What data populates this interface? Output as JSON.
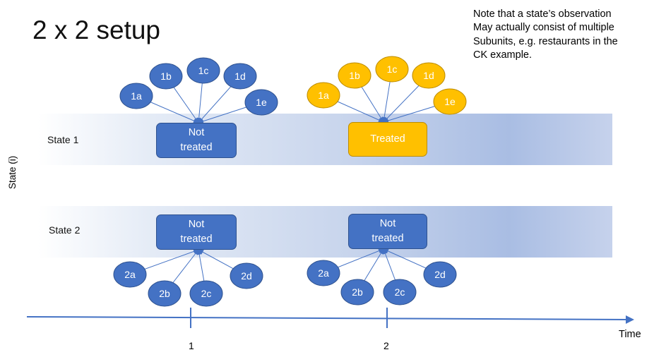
{
  "title": "2 x 2 setup",
  "note": {
    "lines": [
      "Note that a state’s observation",
      "May actually consist of multiple",
      "Subunits, e.g. restaurants in the",
      "CK example."
    ]
  },
  "y_axis_label": "State (i)",
  "x_axis": {
    "label": "Time",
    "ticks": [
      "1",
      "2"
    ]
  },
  "rows": [
    {
      "label": "State 1",
      "cells": [
        {
          "status_lines": [
            "Not",
            "treated"
          ],
          "color": "#4472c4",
          "subunits": [
            "1a",
            "1b",
            "1c",
            "1d",
            "1e"
          ]
        },
        {
          "status_lines": [
            "Treated"
          ],
          "color": "#ffc000",
          "subunits": [
            "1a",
            "1b",
            "1c",
            "1d",
            "1e"
          ]
        }
      ]
    },
    {
      "label": "State 2",
      "cells": [
        {
          "status_lines": [
            "Not",
            "treated"
          ],
          "color": "#4472c4",
          "subunits": [
            "2a",
            "2b",
            "2c",
            "2d"
          ]
        },
        {
          "status_lines": [
            "Not",
            "treated"
          ],
          "color": "#4472c4",
          "subunits": [
            "2a",
            "2b",
            "2c",
            "2d"
          ]
        }
      ]
    }
  ],
  "colors": {
    "untreated": "#4472c4",
    "treated": "#ffc000",
    "arrow": "#4472c4",
    "timeline": "#4472c4"
  }
}
